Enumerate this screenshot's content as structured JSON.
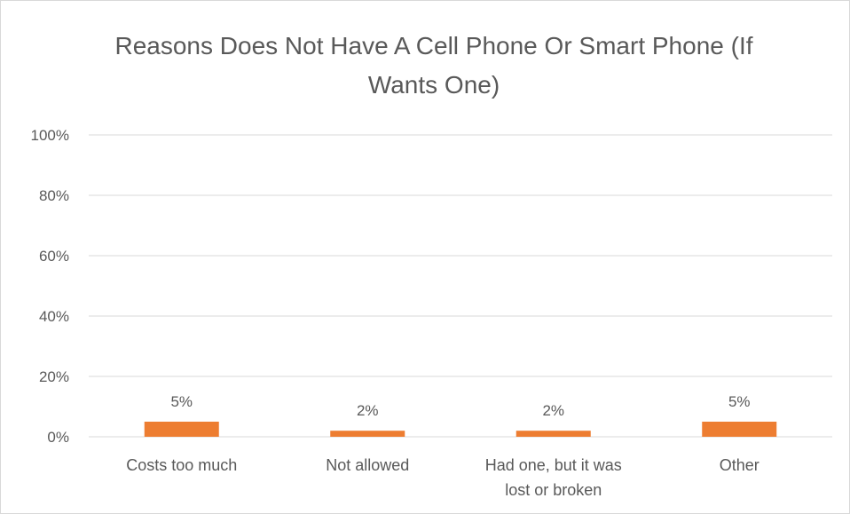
{
  "chart_data": {
    "type": "bar",
    "title": "Reasons Does Not Have A Cell Phone Or Smart Phone (If Wants One)",
    "categories": [
      [
        "Costs too much"
      ],
      [
        "Not allowed"
      ],
      [
        "Had one, but it was",
        "lost or broken"
      ],
      [
        "Other"
      ]
    ],
    "values": [
      0.05,
      0.02,
      0.02,
      0.05
    ],
    "value_labels": [
      "5%",
      "2%",
      "2%",
      "5%"
    ],
    "ylim": [
      0,
      1
    ],
    "yticks": [
      0,
      0.2,
      0.4,
      0.6,
      0.8,
      1.0
    ],
    "ytick_labels": [
      "0%",
      "20%",
      "40%",
      "60%",
      "80%",
      "100%"
    ],
    "grid": true,
    "legend": "none",
    "colors": {
      "bar": "#ed7d31",
      "grid": "#d9d9d9",
      "text": "#595959"
    }
  }
}
